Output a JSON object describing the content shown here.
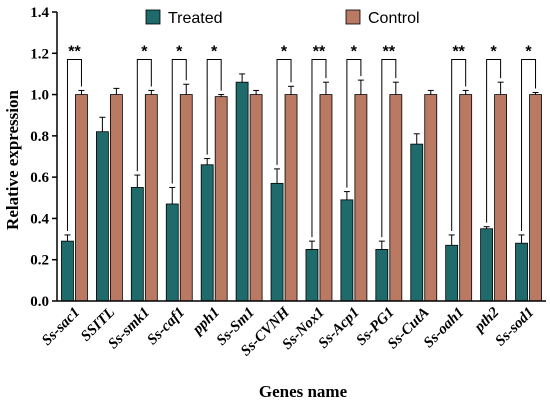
{
  "chart_data": {
    "type": "bar",
    "xlabel": "Genes name",
    "ylabel": "Relative expression",
    "ylim": [
      0,
      1.4
    ],
    "yticks": [
      "0.0",
      "0.2",
      "0.4",
      "0.6",
      "0.8",
      "1.0",
      "1.2",
      "1.4"
    ],
    "legend_placement": "top",
    "grid": false,
    "categories": [
      "Ss-sac1",
      "SSITL",
      "Ss-smk1",
      "Ss-caf1",
      "pph1",
      "Ss-Sm1",
      "Ss-CVNH",
      "Ss-Nox1",
      "Ss-Acp1",
      "Ss-PG1",
      "Ss-CutA",
      "Ss-oah1",
      "pth2",
      "Ss-sod1"
    ],
    "series": [
      {
        "name": "Treated",
        "color": "#1f6b6b",
        "values": [
          0.29,
          0.82,
          0.55,
          0.47,
          0.66,
          1.06,
          0.57,
          0.25,
          0.49,
          0.25,
          0.76,
          0.27,
          0.35,
          0.28
        ],
        "errors": [
          0.03,
          0.07,
          0.06,
          0.08,
          0.03,
          0.04,
          0.07,
          0.04,
          0.04,
          0.04,
          0.05,
          0.05,
          0.01,
          0.04
        ]
      },
      {
        "name": "Control",
        "color": "#b97963",
        "values": [
          1.0,
          1.0,
          1.0,
          1.0,
          0.99,
          1.0,
          1.0,
          1.0,
          1.0,
          1.0,
          1.0,
          1.0,
          1.0,
          1.0
        ],
        "errors": [
          0.02,
          0.03,
          0.02,
          0.05,
          0.01,
          0.02,
          0.04,
          0.06,
          0.07,
          0.06,
          0.02,
          0.02,
          0.06,
          0.01
        ]
      }
    ],
    "significance": [
      "**",
      "",
      "*",
      "*",
      "*",
      "",
      "*",
      "**",
      "*",
      "**",
      "",
      "**",
      "*",
      "*"
    ]
  }
}
